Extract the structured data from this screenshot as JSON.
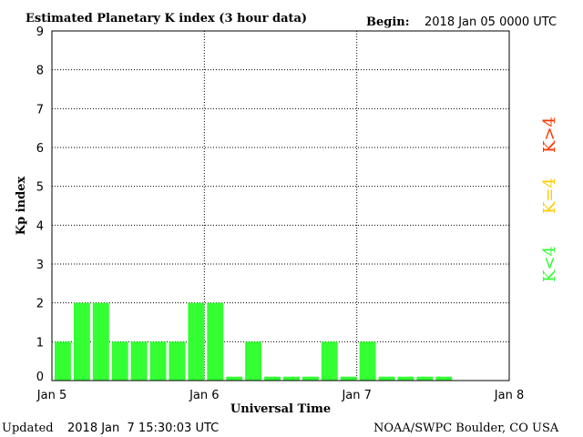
{
  "chart_data": {
    "type": "bar",
    "title": "Estimated Planetary K index (3 hour data)",
    "begin_label": "Begin:",
    "begin_value": "2018 Jan 05 0000 UTC",
    "xlabel": "Universal Time",
    "ylabel": "Kp index",
    "x_ticks": [
      "Jan 5",
      "Jan 6",
      "Jan 7",
      "Jan 8"
    ],
    "y_ticks": [
      "0",
      "1",
      "2",
      "3",
      "4",
      "5",
      "6",
      "7",
      "8",
      "9"
    ],
    "ylim": [
      0,
      9
    ],
    "values": [
      1,
      2,
      2,
      1,
      1,
      1,
      1,
      2,
      2,
      0.1,
      1,
      0.1,
      0.1,
      0.1,
      1,
      0.1,
      1,
      0.1,
      0.1,
      0.1,
      0.1
    ],
    "colors": {
      "low": "#33ff33",
      "equal": "#ffcc00",
      "high": "#ff3300",
      "grid": "#000000"
    },
    "legend": [
      {
        "label": "K<4",
        "color": "#33ff33"
      },
      {
        "label": "K=4",
        "color": "#ffcc00"
      },
      {
        "label": "K>4",
        "color": "#ff3300"
      }
    ]
  },
  "footer": {
    "updated_label": "Updated",
    "updated_value": "2018 Jan  7 15:30:03 UTC",
    "source": "NOAA/SWPC Boulder, CO USA"
  }
}
